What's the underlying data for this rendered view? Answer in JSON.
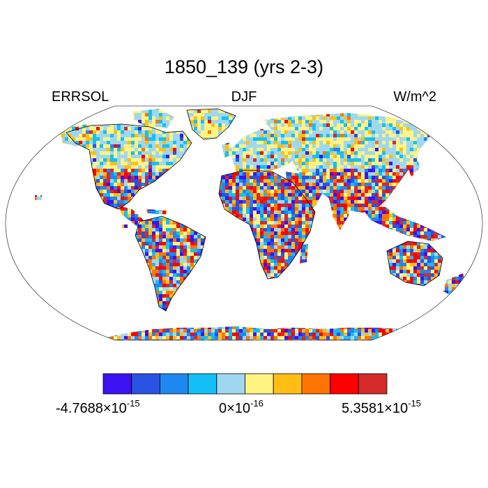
{
  "title": "1850_139 (yrs 2-3)",
  "left_label": "ERRSOL",
  "center_label": "DJF",
  "right_label": "W/m^2",
  "colorbar": {
    "colors": [
      "#3d12f2",
      "#2a52e3",
      "#1e88f0",
      "#12c0f7",
      "#a0d7f0",
      "#fff382",
      "#ffbe15",
      "#ff7400",
      "#ff0000",
      "#d42a2a"
    ],
    "labels": [
      {
        "mantissa": "-4.7688",
        "times": "×10",
        "exponent": "-15"
      },
      {
        "mantissa": "0",
        "times": "×10",
        "exponent": "-16"
      },
      {
        "mantissa": "5.3581",
        "times": "×10",
        "exponent": "-15"
      }
    ]
  }
}
